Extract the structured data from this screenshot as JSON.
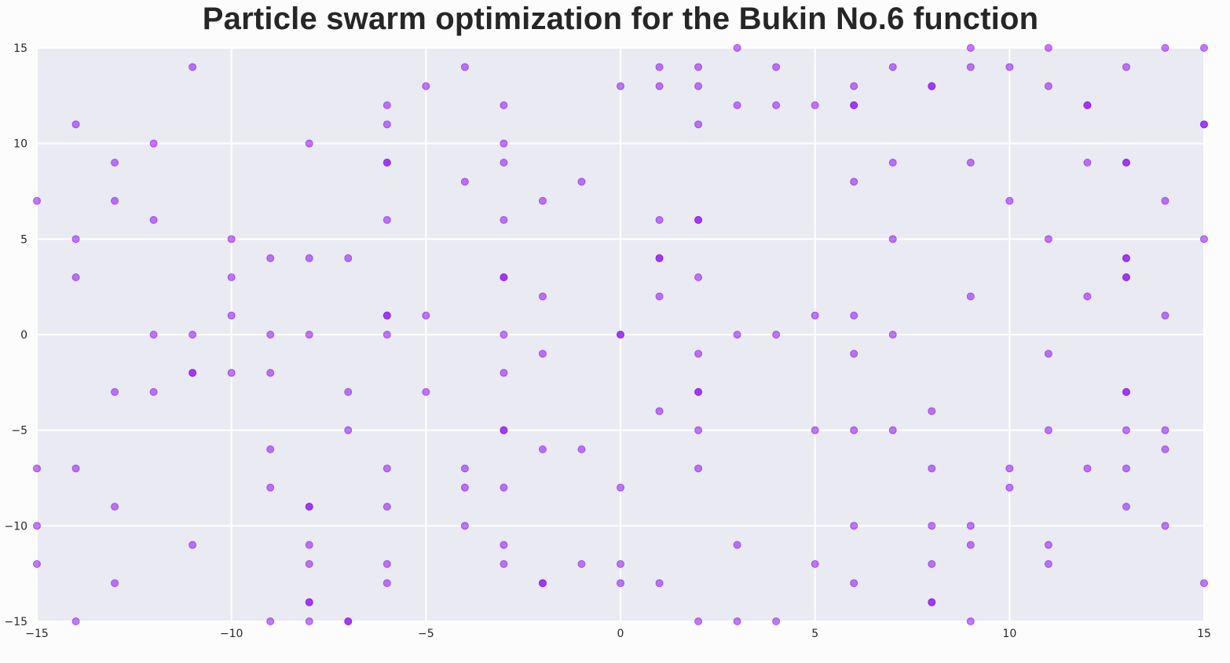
{
  "chart_data": {
    "type": "scatter",
    "title": "Particle swarm optimization for the Bukin No.6 function",
    "xlabel": "",
    "ylabel": "",
    "xlim": [
      -15,
      15
    ],
    "ylim": [
      -15,
      15
    ],
    "xticks": [
      -15,
      -10,
      -5,
      0,
      5,
      10,
      15
    ],
    "yticks": [
      -15,
      -10,
      -5,
      0,
      5,
      10,
      15
    ],
    "xtick_labels": [
      "−15",
      "−10",
      "−5",
      "0",
      "5",
      "10",
      "15"
    ],
    "ytick_labels": [
      "−15",
      "−10",
      "−5",
      "0",
      "5",
      "10",
      "15"
    ],
    "grid": true,
    "colors": {
      "background": "#eaeaf2",
      "grid": "#ffffff",
      "marker": "#8a0ff0"
    },
    "points": [
      [
        -15,
        7
      ],
      [
        -15,
        -7
      ],
      [
        -15,
        -10
      ],
      [
        -15,
        -12
      ],
      [
        -14,
        11
      ],
      [
        -14,
        5
      ],
      [
        -14,
        3
      ],
      [
        -14,
        -7
      ],
      [
        -14,
        -15
      ],
      [
        -13,
        9
      ],
      [
        -13,
        7
      ],
      [
        -13,
        -3
      ],
      [
        -13,
        -9
      ],
      [
        -13,
        -13
      ],
      [
        -12,
        10
      ],
      [
        -12,
        6
      ],
      [
        -12,
        0
      ],
      [
        -12,
        -3
      ],
      [
        -11,
        14
      ],
      [
        -11,
        0
      ],
      [
        -11,
        -2
      ],
      [
        -11,
        -2
      ],
      [
        -11,
        -11
      ],
      [
        -10,
        5
      ],
      [
        -10,
        3
      ],
      [
        -10,
        1
      ],
      [
        -10,
        -2
      ],
      [
        -9,
        4
      ],
      [
        -9,
        0
      ],
      [
        -9,
        -2
      ],
      [
        -9,
        -6
      ],
      [
        -9,
        -8
      ],
      [
        -9,
        -15
      ],
      [
        -8,
        10
      ],
      [
        -8,
        4
      ],
      [
        -8,
        0
      ],
      [
        -8,
        -9
      ],
      [
        -8,
        -9
      ],
      [
        -8,
        -11
      ],
      [
        -8,
        -12
      ],
      [
        -8,
        -14
      ],
      [
        -8,
        -14
      ],
      [
        -8,
        -15
      ],
      [
        -7,
        4
      ],
      [
        -7,
        -3
      ],
      [
        -7,
        -5
      ],
      [
        -7,
        -15
      ],
      [
        -7,
        -15
      ],
      [
        -6,
        12
      ],
      [
        -6,
        11
      ],
      [
        -6,
        9
      ],
      [
        -6,
        9
      ],
      [
        -6,
        6
      ],
      [
        -6,
        1
      ],
      [
        -6,
        1
      ],
      [
        -6,
        0
      ],
      [
        -6,
        -7
      ],
      [
        -6,
        -9
      ],
      [
        -6,
        -12
      ],
      [
        -6,
        -13
      ],
      [
        -5,
        13
      ],
      [
        -5,
        1
      ],
      [
        -5,
        -3
      ],
      [
        -4,
        14
      ],
      [
        -4,
        8
      ],
      [
        -4,
        -7
      ],
      [
        -4,
        -8
      ],
      [
        -4,
        -10
      ],
      [
        -3,
        12
      ],
      [
        -3,
        10
      ],
      [
        -3,
        9
      ],
      [
        -3,
        6
      ],
      [
        -3,
        3
      ],
      [
        -3,
        3
      ],
      [
        -3,
        0
      ],
      [
        -3,
        -2
      ],
      [
        -3,
        -5
      ],
      [
        -3,
        -5
      ],
      [
        -3,
        -8
      ],
      [
        -3,
        -11
      ],
      [
        -3,
        -12
      ],
      [
        -2,
        7
      ],
      [
        -2,
        2
      ],
      [
        -2,
        -1
      ],
      [
        -2,
        -6
      ],
      [
        -2,
        -13
      ],
      [
        -2,
        -13
      ],
      [
        -1,
        8
      ],
      [
        -1,
        -6
      ],
      [
        -1,
        -12
      ],
      [
        0,
        13
      ],
      [
        0,
        0
      ],
      [
        0,
        0
      ],
      [
        0,
        -8
      ],
      [
        0,
        -12
      ],
      [
        0,
        -13
      ],
      [
        1,
        14
      ],
      [
        1,
        13
      ],
      [
        1,
        6
      ],
      [
        1,
        4
      ],
      [
        1,
        4
      ],
      [
        1,
        2
      ],
      [
        1,
        -4
      ],
      [
        1,
        -13
      ],
      [
        2,
        14
      ],
      [
        2,
        13
      ],
      [
        2,
        11
      ],
      [
        2,
        6
      ],
      [
        2,
        6
      ],
      [
        2,
        3
      ],
      [
        2,
        -1
      ],
      [
        2,
        -3
      ],
      [
        2,
        -3
      ],
      [
        2,
        -5
      ],
      [
        2,
        -7
      ],
      [
        2,
        -15
      ],
      [
        3,
        15
      ],
      [
        3,
        12
      ],
      [
        3,
        0
      ],
      [
        3,
        -11
      ],
      [
        3,
        -15
      ],
      [
        4,
        14
      ],
      [
        4,
        12
      ],
      [
        4,
        0
      ],
      [
        4,
        -15
      ],
      [
        5,
        12
      ],
      [
        5,
        1
      ],
      [
        5,
        -5
      ],
      [
        5,
        -12
      ],
      [
        6,
        13
      ],
      [
        6,
        12
      ],
      [
        6,
        12
      ],
      [
        6,
        8
      ],
      [
        6,
        1
      ],
      [
        6,
        -1
      ],
      [
        6,
        -5
      ],
      [
        6,
        -10
      ],
      [
        6,
        -13
      ],
      [
        7,
        14
      ],
      [
        7,
        9
      ],
      [
        7,
        5
      ],
      [
        7,
        0
      ],
      [
        7,
        -5
      ],
      [
        8,
        13
      ],
      [
        8,
        13
      ],
      [
        8,
        -4
      ],
      [
        8,
        -7
      ],
      [
        8,
        -10
      ],
      [
        8,
        -12
      ],
      [
        8,
        -14
      ],
      [
        8,
        -14
      ],
      [
        9,
        15
      ],
      [
        9,
        14
      ],
      [
        9,
        9
      ],
      [
        9,
        2
      ],
      [
        9,
        -10
      ],
      [
        9,
        -11
      ],
      [
        9,
        -15
      ],
      [
        10,
        14
      ],
      [
        10,
        7
      ],
      [
        10,
        -7
      ],
      [
        10,
        -8
      ],
      [
        11,
        15
      ],
      [
        11,
        13
      ],
      [
        11,
        5
      ],
      [
        11,
        -1
      ],
      [
        11,
        -5
      ],
      [
        11,
        -11
      ],
      [
        11,
        -12
      ],
      [
        12,
        12
      ],
      [
        12,
        12
      ],
      [
        12,
        9
      ],
      [
        12,
        2
      ],
      [
        12,
        -7
      ],
      [
        13,
        14
      ],
      [
        13,
        9
      ],
      [
        13,
        9
      ],
      [
        13,
        4
      ],
      [
        13,
        4
      ],
      [
        13,
        3
      ],
      [
        13,
        3
      ],
      [
        13,
        -3
      ],
      [
        13,
        -3
      ],
      [
        13,
        -5
      ],
      [
        13,
        -7
      ],
      [
        13,
        -9
      ],
      [
        14,
        15
      ],
      [
        14,
        7
      ],
      [
        14,
        1
      ],
      [
        14,
        -5
      ],
      [
        14,
        -6
      ],
      [
        14,
        -10
      ],
      [
        15,
        15
      ],
      [
        15,
        11
      ],
      [
        15,
        11
      ],
      [
        15,
        5
      ],
      [
        15,
        -13
      ]
    ]
  }
}
